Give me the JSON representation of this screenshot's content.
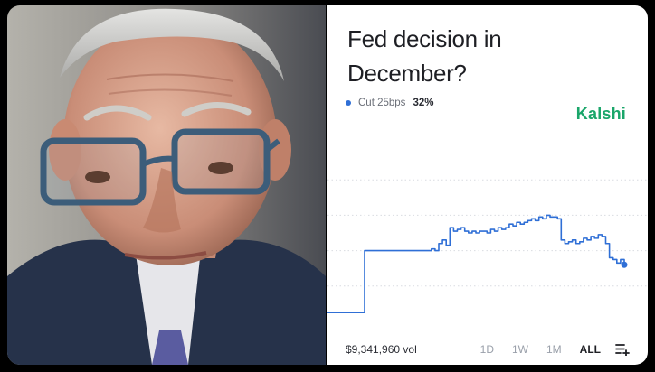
{
  "market": {
    "title": "Fed decision in December?",
    "brand": "Kalshi",
    "outcome_label": "Cut 25bps",
    "outcome_value": "32%",
    "volume": "$9,341,960 vol"
  },
  "ranges": [
    "1D",
    "1W",
    "1M",
    "ALL"
  ],
  "active_range": "ALL",
  "colors": {
    "accent": "#2f6fd6",
    "brand": "#1aa66a"
  },
  "icons": {
    "menu": "list-add-icon"
  },
  "chart_data": {
    "type": "line",
    "series": [
      {
        "name": "Cut 25bps",
        "values": [
          5,
          5,
          5,
          5,
          5,
          5,
          5,
          5,
          5,
          5,
          40,
          40,
          40,
          40,
          40,
          40,
          40,
          40,
          40,
          40,
          40,
          40,
          40,
          40,
          40,
          40,
          40,
          40,
          41,
          40,
          44,
          46,
          43,
          53,
          51,
          52,
          53,
          51,
          50,
          51,
          50,
          51,
          51,
          50,
          52,
          51,
          53,
          52,
          53,
          55,
          54,
          56,
          55,
          56,
          57,
          58,
          57,
          59,
          58,
          60,
          59,
          59,
          58,
          46,
          44,
          45,
          46,
          44,
          45,
          47,
          46,
          48,
          47,
          49,
          48,
          44,
          36,
          35,
          33,
          35,
          32
        ]
      }
    ],
    "ylim": [
      0,
      100
    ]
  }
}
